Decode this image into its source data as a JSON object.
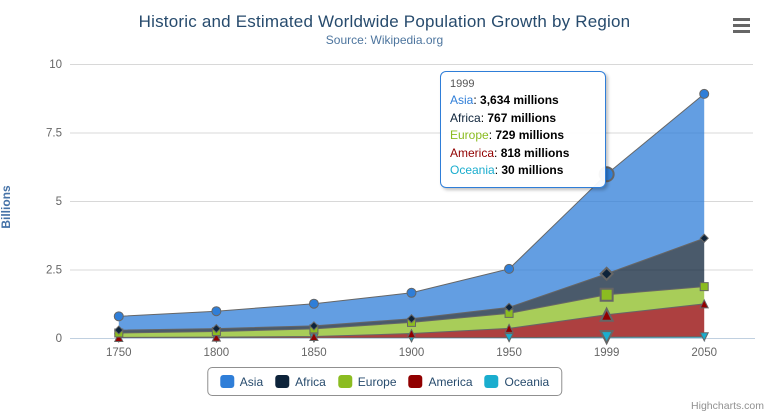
{
  "chart": {
    "title": "Historic and Estimated Worldwide Population Growth by Region",
    "subtitle": "Source: Wikipedia.org",
    "credits": "Highcharts.com"
  },
  "chart_data": {
    "type": "area",
    "stacking": "normal",
    "title": "Historic and Estimated Worldwide Population Growth by Region",
    "subtitle": "Source: Wikipedia.org",
    "categories": [
      "1750",
      "1800",
      "1850",
      "1900",
      "1950",
      "1999",
      "2050"
    ],
    "xlabel": "",
    "ylabel": "Billions",
    "ylim": [
      0,
      10
    ],
    "yticks": [
      "0",
      "2.5",
      "5",
      "7.5",
      "10"
    ],
    "unit": "millions",
    "grid": true,
    "legend_position": "bottom",
    "hover_index": 5,
    "series": [
      {
        "name": "Asia",
        "color": "#2f7ed8",
        "marker": "circle",
        "values": [
          502,
          635,
          809,
          947,
          1402,
          3634,
          5268
        ]
      },
      {
        "name": "Africa",
        "color": "#0d233a",
        "marker": "diamond",
        "values": [
          106,
          107,
          111,
          133,
          221,
          767,
          1766
        ]
      },
      {
        "name": "Europe",
        "color": "#8bbc21",
        "marker": "square",
        "values": [
          163,
          203,
          276,
          408,
          547,
          729,
          628
        ]
      },
      {
        "name": "America",
        "color": "#910000",
        "marker": "triangle",
        "values": [
          18,
          31,
          54,
          156,
          339,
          818,
          1201
        ]
      },
      {
        "name": "Oceania",
        "color": "#1aadce",
        "marker": "triangle-down",
        "values": [
          2,
          2,
          2,
          6,
          13,
          30,
          46
        ]
      }
    ],
    "style": {
      "line_color": "#666666",
      "fill_opacity": 0.75,
      "grid_color": "#d8d8d8",
      "axis_line_color": "#c0d0e0",
      "tick_label_color": "#666666"
    }
  },
  "tooltip": {
    "header": "1999",
    "border_color": "#2f7ed8",
    "rows": [
      {
        "label": "Asia",
        "color": "#2f7ed8",
        "value": "3,634 millions"
      },
      {
        "label": "Africa",
        "color": "#0d233a",
        "value": "767 millions"
      },
      {
        "label": "Europe",
        "color": "#8bbc21",
        "value": "729 millions"
      },
      {
        "label": "America",
        "color": "#910000",
        "value": "818 millions"
      },
      {
        "label": "Oceania",
        "color": "#1aadce",
        "value": "30 millions"
      }
    ]
  }
}
